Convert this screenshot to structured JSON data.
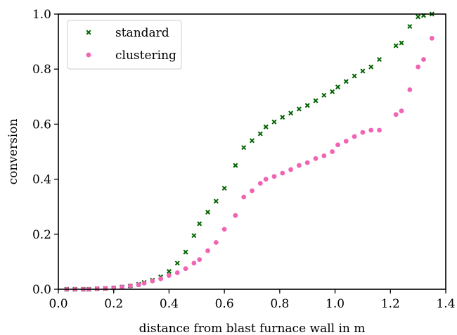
{
  "chart_data": {
    "type": "scatter",
    "title": "",
    "xlabel": "distance from blast furnace wall in m",
    "ylabel": "conversion",
    "xlim": [
      0.0,
      1.4
    ],
    "ylim": [
      0.0,
      1.0
    ],
    "xticks": [
      "0.0",
      "0.2",
      "0.4",
      "0.6",
      "0.8",
      "1.0",
      "1.2",
      "1.4"
    ],
    "yticks": [
      "0.0",
      "0.2",
      "0.4",
      "0.6",
      "0.8",
      "1.0"
    ],
    "grid": false,
    "legend": "top-left",
    "series": [
      {
        "name": "standard",
        "marker": "x",
        "color": "#006400",
        "x": [
          0.03,
          0.06,
          0.09,
          0.11,
          0.14,
          0.17,
          0.2,
          0.23,
          0.26,
          0.29,
          0.31,
          0.34,
          0.37,
          0.4,
          0.43,
          0.46,
          0.49,
          0.51,
          0.54,
          0.57,
          0.6,
          0.64,
          0.67,
          0.7,
          0.73,
          0.75,
          0.78,
          0.81,
          0.84,
          0.87,
          0.9,
          0.93,
          0.96,
          0.99,
          1.01,
          1.04,
          1.07,
          1.1,
          1.13,
          1.16,
          1.22,
          1.24,
          1.27,
          1.3,
          1.32,
          1.35
        ],
        "y": [
          0.0,
          0.0,
          0.0,
          0.0,
          0.002,
          0.003,
          0.005,
          0.008,
          0.012,
          0.018,
          0.025,
          0.033,
          0.045,
          0.065,
          0.095,
          0.135,
          0.195,
          0.238,
          0.28,
          0.32,
          0.367,
          0.45,
          0.515,
          0.54,
          0.565,
          0.59,
          0.608,
          0.625,
          0.64,
          0.655,
          0.668,
          0.685,
          0.705,
          0.718,
          0.735,
          0.755,
          0.775,
          0.793,
          0.808,
          0.835,
          0.885,
          0.895,
          0.955,
          0.99,
          0.995,
          1.0
        ]
      },
      {
        "name": "clustering",
        "marker": "o",
        "color": "#f064b4",
        "x": [
          0.03,
          0.06,
          0.09,
          0.11,
          0.14,
          0.17,
          0.2,
          0.23,
          0.26,
          0.29,
          0.31,
          0.34,
          0.37,
          0.4,
          0.43,
          0.46,
          0.49,
          0.51,
          0.54,
          0.57,
          0.6,
          0.64,
          0.67,
          0.7,
          0.73,
          0.75,
          0.78,
          0.81,
          0.84,
          0.87,
          0.9,
          0.93,
          0.96,
          0.99,
          1.01,
          1.04,
          1.07,
          1.1,
          1.13,
          1.16,
          1.22,
          1.24,
          1.27,
          1.3,
          1.32,
          1.35
        ],
        "y": [
          0.0,
          0.0,
          0.0,
          0.0,
          0.002,
          0.003,
          0.005,
          0.008,
          0.012,
          0.016,
          0.022,
          0.03,
          0.038,
          0.05,
          0.06,
          0.075,
          0.095,
          0.108,
          0.14,
          0.17,
          0.218,
          0.268,
          0.335,
          0.358,
          0.385,
          0.4,
          0.41,
          0.422,
          0.435,
          0.45,
          0.46,
          0.475,
          0.485,
          0.5,
          0.525,
          0.538,
          0.555,
          0.57,
          0.578,
          0.578,
          0.635,
          0.648,
          0.725,
          0.808,
          0.835,
          0.912
        ]
      }
    ]
  }
}
